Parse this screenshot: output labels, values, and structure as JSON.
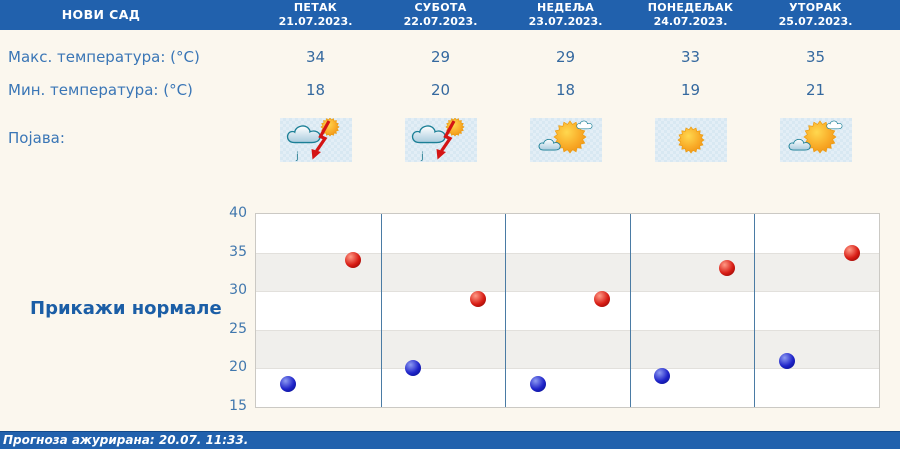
{
  "header": {
    "location": "НОВИ САД",
    "days": [
      {
        "name": "ПЕТАК",
        "date": "21.07.2023."
      },
      {
        "name": "СУБОТА",
        "date": "22.07.2023."
      },
      {
        "name": "НЕДЕЉА",
        "date": "23.07.2023."
      },
      {
        "name": "ПОНЕДЕЉАК",
        "date": "24.07.2023."
      },
      {
        "name": "УТОРАК",
        "date": "25.07.2023."
      }
    ]
  },
  "rows": {
    "max_label": "Макс. температура: (°C)",
    "min_label": "Мин. температура: (°C)",
    "phenomena_label": "Појава:",
    "max_values": [
      "34",
      "29",
      "29",
      "33",
      "35"
    ],
    "min_values": [
      "18",
      "20",
      "18",
      "19",
      "21"
    ],
    "icons": [
      "storm-sun-icon",
      "storm-sun-icon",
      "sun-cloud-icon",
      "sun-icon",
      "sun-cloud-icon"
    ]
  },
  "normals_link_label": "Прикажи нормале",
  "footer": {
    "updated_text": "Прогноза ажурирана:  20.07. 11:33."
  },
  "colors": {
    "header_bg": "#2161ad",
    "page_bg": "#fbf7ee",
    "label_blue": "#3a76b6",
    "link_blue": "#1b5ea6",
    "axis_blue": "#4077ad",
    "separator_blue": "#4a7ba4",
    "band_gray": "#f0efec",
    "dot_red": "#d81d15",
    "dot_blue": "#1f24c9",
    "icon_tile_bg": "#e3eef6"
  },
  "chart_data": {
    "type": "scatter",
    "categories": [
      "ПЕТАК",
      "СУБОТА",
      "НЕДЕЉА",
      "ПОНЕДЕЉАК",
      "УТОРАК"
    ],
    "series": [
      {
        "name": "Макс. температура (°C)",
        "color": "#d81d15",
        "values": [
          34,
          29,
          29,
          33,
          35
        ]
      },
      {
        "name": "Мин. температура (°C)",
        "color": "#1f24c9",
        "values": [
          18,
          20,
          18,
          19,
          21
        ]
      }
    ],
    "ylim": [
      15,
      40
    ],
    "ytick_step": 5,
    "grid": true,
    "legend": "none",
    "shaded_bands": [
      [
        30,
        35
      ],
      [
        20,
        25
      ]
    ]
  }
}
